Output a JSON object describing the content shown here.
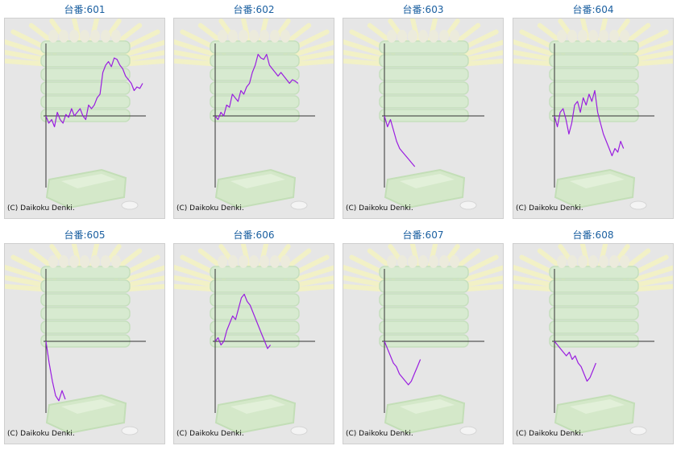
{
  "colors": {
    "line": "#9a1ee0",
    "axis": "#333333",
    "title": "#1a5fa0",
    "panel_bg": "#e6e6e6"
  },
  "copyright": "(C) Daikoku Denki.",
  "machines": [
    {
      "title": "台番:601"
    },
    {
      "title": "台番:602"
    },
    {
      "title": "台番:603"
    },
    {
      "title": "台番:604"
    },
    {
      "title": "台番:605"
    },
    {
      "title": "台番:606"
    },
    {
      "title": "台番:607"
    },
    {
      "title": "台番:608"
    }
  ],
  "chart_data": [
    {
      "type": "line",
      "x_range": [
        0,
        1
      ],
      "y_range": [
        -1,
        1
      ],
      "y": [
        0,
        -0.1,
        -0.05,
        -0.15,
        0.05,
        -0.05,
        -0.1,
        0.02,
        -0.02,
        0.1,
        0.0,
        0.05,
        0.1,
        0.0,
        -0.05,
        0.15,
        0.1,
        0.15,
        0.25,
        0.3,
        0.6,
        0.7,
        0.75,
        0.68,
        0.8,
        0.78,
        0.7,
        0.65,
        0.55,
        0.5,
        0.45,
        0.35,
        0.4,
        0.38,
        0.45
      ]
    },
    {
      "type": "line",
      "x_range": [
        0,
        1
      ],
      "y_range": [
        -1,
        1
      ],
      "y": [
        0,
        -0.05,
        0.05,
        0.0,
        0.15,
        0.12,
        0.3,
        0.25,
        0.2,
        0.35,
        0.3,
        0.4,
        0.45,
        0.6,
        0.7,
        0.85,
        0.8,
        0.78,
        0.85,
        0.7,
        0.65,
        0.6,
        0.55,
        0.6,
        0.55,
        0.5,
        0.45,
        0.5,
        0.48,
        0.45
      ]
    },
    {
      "type": "line",
      "x_range": [
        0,
        1
      ],
      "y_range": [
        -1,
        1
      ],
      "y": [
        0,
        -0.15,
        -0.05,
        -0.2,
        -0.35,
        -0.45,
        -0.5,
        -0.55,
        -0.6,
        -0.65,
        -0.7
      ]
    },
    {
      "type": "line",
      "x_range": [
        0,
        1
      ],
      "y_range": [
        -1,
        1
      ],
      "y": [
        0,
        -0.15,
        0.05,
        0.1,
        -0.05,
        -0.25,
        -0.1,
        0.15,
        0.2,
        0.05,
        0.25,
        0.15,
        0.3,
        0.2,
        0.35,
        0.05,
        -0.1,
        -0.25,
        -0.35,
        -0.45,
        -0.55,
        -0.45,
        -0.5,
        -0.35,
        -0.45
      ]
    },
    {
      "type": "line",
      "x_range": [
        0,
        1
      ],
      "y_range": [
        -1,
        1
      ],
      "y": [
        0,
        -0.3,
        -0.55,
        -0.75,
        -0.82,
        -0.68,
        -0.8
      ]
    },
    {
      "type": "line",
      "x_range": [
        0,
        1
      ],
      "y_range": [
        -1,
        1
      ],
      "y": [
        0,
        0.05,
        -0.05,
        0.0,
        0.15,
        0.25,
        0.35,
        0.3,
        0.45,
        0.6,
        0.65,
        0.55,
        0.5,
        0.4,
        0.3,
        0.2,
        0.1,
        0.0,
        -0.1,
        -0.05
      ]
    },
    {
      "type": "line",
      "x_range": [
        0,
        1
      ],
      "y_range": [
        -1,
        1
      ],
      "y": [
        0,
        -0.1,
        -0.2,
        -0.3,
        -0.35,
        -0.45,
        -0.5,
        -0.55,
        -0.6,
        -0.55,
        -0.45,
        -0.35,
        -0.25
      ]
    },
    {
      "type": "line",
      "x_range": [
        0,
        1
      ],
      "y_range": [
        -1,
        1
      ],
      "y": [
        0,
        -0.05,
        -0.1,
        -0.15,
        -0.2,
        -0.15,
        -0.25,
        -0.2,
        -0.3,
        -0.35,
        -0.45,
        -0.55,
        -0.5,
        -0.4,
        -0.3
      ]
    }
  ]
}
